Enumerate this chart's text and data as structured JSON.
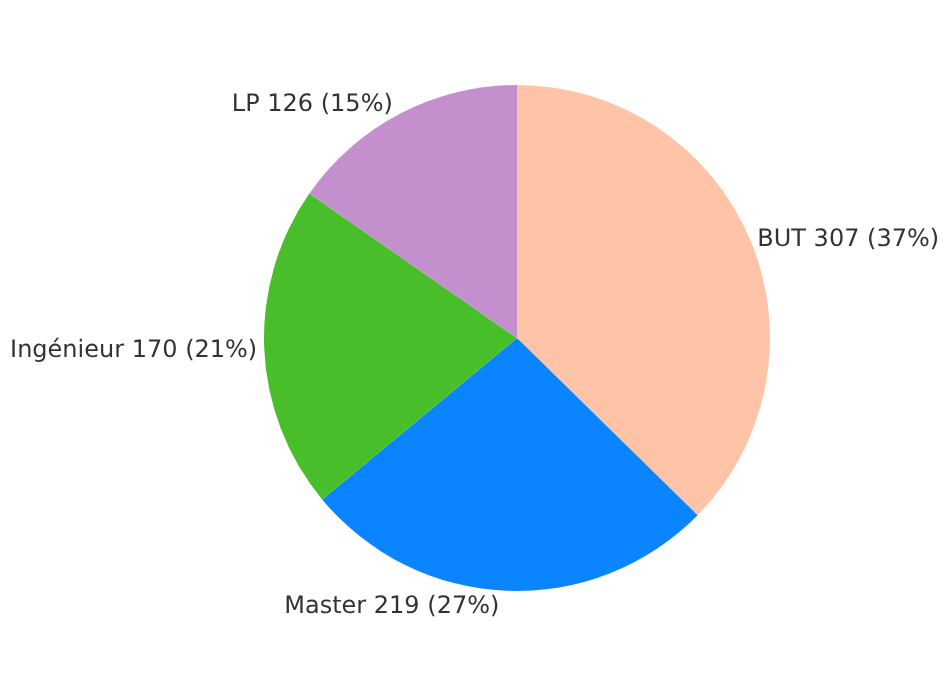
{
  "chart_data": {
    "type": "pie",
    "categories": [
      "BUT",
      "Master",
      "Ingénieur",
      "LP"
    ],
    "values": [
      307,
      219,
      170,
      126
    ],
    "value_labels": [
      "307 (37%)",
      "219 (27%)",
      "170 (21%)",
      "126 (15%)"
    ],
    "colors": [
      "#ffc4a8",
      "#0a84ff",
      "#48bf2a",
      "#c48fcd"
    ],
    "legend": false
  }
}
